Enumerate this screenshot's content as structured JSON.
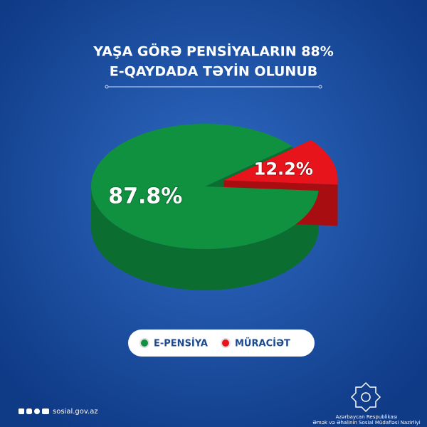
{
  "chart_data": {
    "type": "pie",
    "title": [
      "YAŞA GÖRƏ PENSİYALARIN 88%",
      "E-QAYDADA TƏYİN OLUNUB"
    ],
    "categories": [
      "E-PENSİYA",
      "MÜRACİƏT"
    ],
    "values": [
      87.8,
      12.2
    ],
    "value_labels": [
      "87.8%",
      "12.2%"
    ],
    "colors": [
      "#0f9140",
      "#e8141c"
    ],
    "side_colors": [
      "#0b6e30",
      "#a80d12"
    ]
  },
  "footer": {
    "website": "sosial.gov.az",
    "org_line1": "Azərbaycan Respublikası",
    "org_line2": "Əmək və Əhalinin Sosial Müdafiəsi Nazirliyi"
  }
}
